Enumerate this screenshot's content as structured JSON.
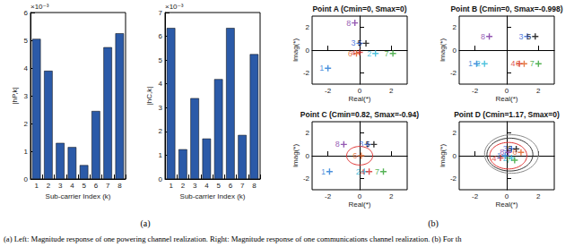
{
  "chart_data": [
    {
      "type": "bar",
      "xlabel": "Sub-carrier Index (k)",
      "ylabel": "|hP,k|",
      "annotation": "×10⁻³",
      "categories": [
        "1",
        "2",
        "3",
        "4",
        "5",
        "6",
        "7",
        "8"
      ],
      "values": [
        5.05,
        3.9,
        1.3,
        1.15,
        0.5,
        2.45,
        4.75,
        5.25
      ],
      "color": "#2b5aa8",
      "ylim": [
        0,
        6
      ],
      "yticks": [
        0,
        1,
        2,
        3,
        4,
        5,
        6
      ],
      "grid": false
    },
    {
      "type": "bar",
      "xlabel": "Sub-carrier Index (k)",
      "ylabel": "|hC,k|",
      "annotation": "×10⁻³",
      "categories": [
        "1",
        "2",
        "3",
        "4",
        "5",
        "6",
        "7",
        "8"
      ],
      "values": [
        6.35,
        1.25,
        3.4,
        1.7,
        4.2,
        6.35,
        1.85,
        5.25
      ],
      "color": "#2b5aa8",
      "ylim": [
        0,
        7
      ],
      "yticks": [
        0,
        1,
        2,
        3,
        4,
        5,
        6,
        7
      ],
      "grid": false
    },
    {
      "type": "scatter",
      "title": "Point A (Cmin=0, Smax=0)",
      "xlabel": "Real(*)",
      "ylabel": "Imag(*)",
      "xlim": [
        -3,
        3
      ],
      "ylim": [
        -3,
        3
      ],
      "xticks": [
        -2,
        0,
        2
      ],
      "yticks": [
        -2,
        0,
        2
      ],
      "marker": "plus",
      "grid": false,
      "series": [
        {
          "name": "1",
          "color": "#1f77d4",
          "x": [
            -2.0
          ],
          "y": [
            -1.6
          ]
        },
        {
          "name": "2",
          "color": "#27b4d6",
          "x": [
            1.0
          ],
          "y": [
            -0.3
          ]
        },
        {
          "name": "3",
          "color": "#2a5bd7",
          "x": [
            0.0
          ],
          "y": [
            0.6
          ]
        },
        {
          "name": "4",
          "color": "#d62728",
          "x": [
            0.0
          ],
          "y": [
            -0.2
          ]
        },
        {
          "name": "5",
          "color": "#000000",
          "x": [
            0.4
          ],
          "y": [
            0.6
          ]
        },
        {
          "name": "6",
          "color": "#e05a1a",
          "x": [
            -0.2
          ],
          "y": [
            -0.3
          ]
        },
        {
          "name": "7",
          "color": "#2ca02c",
          "x": [
            2.1
          ],
          "y": [
            -0.3
          ]
        },
        {
          "name": "8",
          "color": "#7b2fa0",
          "x": [
            -0.3
          ],
          "y": [
            2.4
          ]
        }
      ]
    },
    {
      "type": "scatter",
      "title": "Point B (Cmin=0, Smax=-0.998)",
      "xlabel": "Real(*)",
      "ylabel": "Imag(*)",
      "xlim": [
        -3,
        3
      ],
      "ylim": [
        -3,
        3
      ],
      "xticks": [
        -2,
        0,
        2
      ],
      "yticks": [
        -2,
        0,
        2
      ],
      "marker": "plus",
      "grid": false,
      "series": [
        {
          "name": "1",
          "color": "#1f77d4",
          "x": [
            -1.9
          ],
          "y": [
            -1.2
          ]
        },
        {
          "name": "2",
          "color": "#27b4d6",
          "x": [
            -1.4
          ],
          "y": [
            -1.2
          ]
        },
        {
          "name": "3",
          "color": "#2a5bd7",
          "x": [
            1.3
          ],
          "y": [
            1.2
          ]
        },
        {
          "name": "4",
          "color": "#d62728",
          "x": [
            0.8
          ],
          "y": [
            -1.2
          ]
        },
        {
          "name": "5",
          "color": "#000000",
          "x": [
            1.8
          ],
          "y": [
            1.2
          ]
        },
        {
          "name": "6",
          "color": "#e05a1a",
          "x": [
            1.1
          ],
          "y": [
            -1.2
          ]
        },
        {
          "name": "7",
          "color": "#2ca02c",
          "x": [
            2.0
          ],
          "y": [
            -1.2
          ]
        },
        {
          "name": "8",
          "color": "#7b2fa0",
          "x": [
            -1.1
          ],
          "y": [
            1.2
          ]
        }
      ]
    },
    {
      "type": "scatter",
      "title": "Point C (Cmin=0.82, Smax=-0.94)",
      "xlabel": "Real(*)",
      "ylabel": "Imag(*)",
      "xlim": [
        -3,
        3
      ],
      "ylim": [
        -3,
        3
      ],
      "xticks": [
        -2,
        0,
        2
      ],
      "yticks": [
        -2,
        0,
        2
      ],
      "marker": "plus",
      "grid": false,
      "series": [
        {
          "name": "1",
          "color": "#1f77d4",
          "x": [
            -1.9
          ],
          "y": [
            -1.4
          ]
        },
        {
          "name": "2",
          "color": "#27b4d6",
          "x": [
            0.3
          ],
          "y": [
            -1.4
          ]
        },
        {
          "name": "3",
          "color": "#2a5bd7",
          "x": [
            0.5
          ],
          "y": [
            1.0
          ]
        },
        {
          "name": "4",
          "color": "#d62728",
          "x": [
            0.6
          ],
          "y": [
            -1.4
          ]
        },
        {
          "name": "5",
          "color": "#000000",
          "x": [
            0.9
          ],
          "y": [
            1.0
          ]
        },
        {
          "name": "6",
          "color": "#e05a1a",
          "x": [
            0.1
          ],
          "y": [
            0.0
          ]
        },
        {
          "name": "7",
          "color": "#2ca02c",
          "x": [
            1.5
          ],
          "y": [
            -1.4
          ]
        },
        {
          "name": "8",
          "color": "#7b2fa0",
          "x": [
            -1.0
          ],
          "y": [
            1.0
          ]
        }
      ],
      "circles": [
        {
          "cx": 0.0,
          "cy": 0.0,
          "r": 0.82,
          "color": "#e03030"
        }
      ]
    },
    {
      "type": "scatter",
      "title": "Point D (Cmin=1.17, Smax=0)",
      "xlabel": "Real(*)",
      "ylabel": "Imag(*)",
      "xlim": [
        -3,
        3
      ],
      "ylim": [
        -3,
        3
      ],
      "xticks": [
        -2,
        0,
        2
      ],
      "yticks": [
        -2,
        0,
        2
      ],
      "marker": "plus",
      "grid": false,
      "series": [
        {
          "name": "1",
          "color": "#1f77d4",
          "x": [
            -0.1
          ],
          "y": [
            0.0
          ]
        },
        {
          "name": "2",
          "color": "#27b4d6",
          "x": [
            0.3
          ],
          "y": [
            -0.2
          ]
        },
        {
          "name": "3",
          "color": "#2a5bd7",
          "x": [
            0.3
          ],
          "y": [
            0.6
          ]
        },
        {
          "name": "4",
          "color": "#d62728",
          "x": [
            -0.4
          ],
          "y": [
            -0.2
          ]
        },
        {
          "name": "5",
          "color": "#000000",
          "x": [
            0.6
          ],
          "y": [
            0.6
          ]
        },
        {
          "name": "6",
          "color": "#e05a1a",
          "x": [
            0.9
          ],
          "y": [
            0.3
          ]
        },
        {
          "name": "7",
          "color": "#2ca02c",
          "x": [
            0.5
          ],
          "y": [
            -0.4
          ]
        },
        {
          "name": "8",
          "color": "#7b2fa0",
          "x": [
            0.1
          ],
          "y": [
            0.3
          ]
        }
      ],
      "circles": [
        {
          "cx": 0.1,
          "cy": 0.0,
          "r": 1.17,
          "color": "#e03030"
        },
        {
          "cx": 0.2,
          "cy": 0.1,
          "r": 1.45,
          "color": "#333333"
        },
        {
          "cx": 0.3,
          "cy": 0.15,
          "r": 1.7,
          "color": "#888888"
        }
      ]
    }
  ],
  "panel_labels": [
    "(a)",
    "(b)"
  ],
  "caption": "(a) Left: Magnitude response of one powering channel realization. Right: Magnitude response of one communications channel realization. (b) For th"
}
